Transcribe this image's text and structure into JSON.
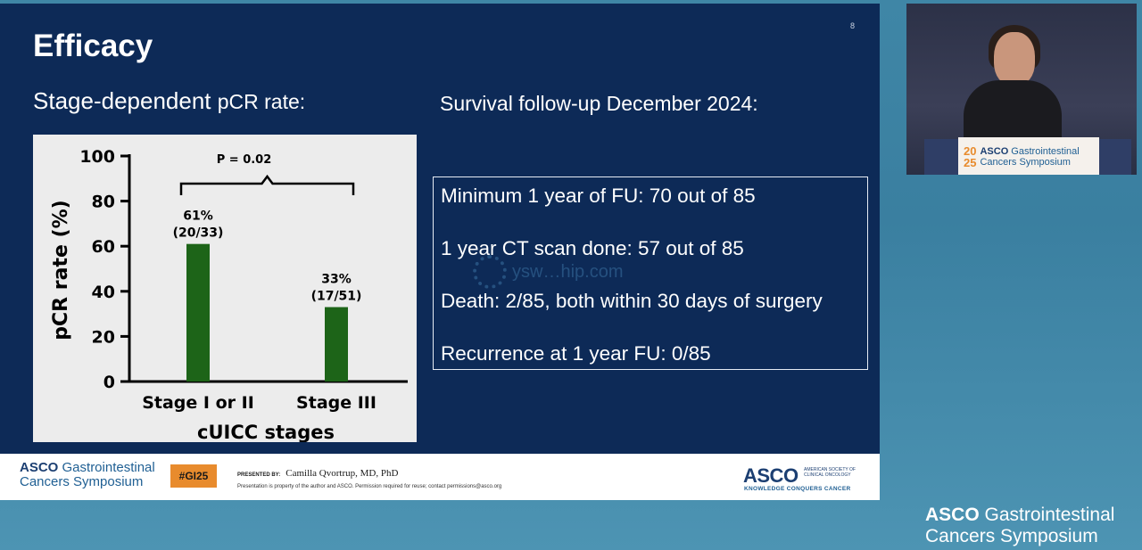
{
  "slide": {
    "title": "Efficacy",
    "number": "8",
    "left_heading_main": "Stage-dependent ",
    "left_heading_small": "pCR rate:",
    "right_heading": "Survival follow-up December 2024:"
  },
  "chart_data": {
    "type": "bar",
    "categories": [
      "Stage I or II",
      "Stage III"
    ],
    "values": [
      61,
      33
    ],
    "data_labels": [
      [
        "61%",
        "(20/33)"
      ],
      [
        "33%",
        "(17/51)"
      ]
    ],
    "xlabel": "cUICC stages",
    "ylabel": "pCR rate (%)",
    "ylim": [
      0,
      100
    ],
    "yticks": [
      0,
      20,
      40,
      60,
      80,
      100
    ],
    "annotation": "P = 0.02",
    "bar_color": "#1d6418"
  },
  "survival": {
    "items": [
      "Minimum 1 year of FU: 70 out of 85",
      "1 year CT scan done: 57 out of 85",
      "Death: 2/85, both within 30 days of surgery",
      "Recurrence at 1 year FU: 0/85"
    ]
  },
  "watermark": "ysw…hip.com",
  "footer": {
    "logo_brand": "ASCO",
    "logo_line1": " Gastrointestinal",
    "logo_line2": "Cancers Symposium",
    "hashtag": "#GI25",
    "presented_label": "PRESENTED BY:",
    "presenter": "Camilla Qvortrup, MD, PhD",
    "disclaimer": "Presentation is property of the author and ASCO. Permission required for reuse; contact permissions@asco.org",
    "asco_brand": "ASCO",
    "asco_society": "AMERICAN SOCIETY OF CLINICAL ONCOLOGY",
    "asco_tagline": "KNOWLEDGE CONQUERS CANCER"
  },
  "video": {
    "sign_year_top": "20",
    "sign_year_bottom": "25",
    "sign_brand": "ASCO",
    "sign_line1": " Gastrointestinal",
    "sign_line2": "Cancers Symposium"
  },
  "corner_logo": {
    "brand": "ASCO",
    "line1": " Gastrointestinal",
    "line2": "Cancers Symposium"
  },
  "colors": {
    "slide_bg": "#0d2a57",
    "accent_orange": "#e88b2d",
    "asco_blue": "#1c3f72"
  }
}
